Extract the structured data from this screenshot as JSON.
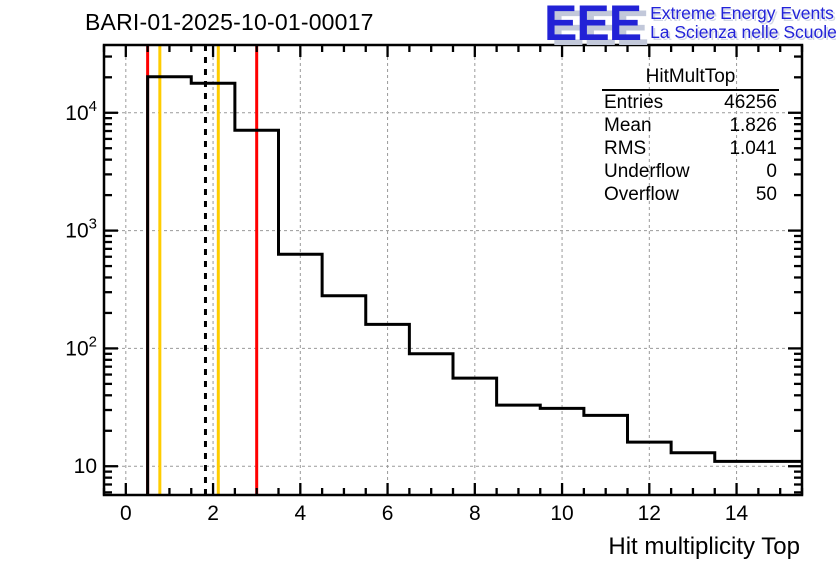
{
  "header": {
    "title": "BARI-01-2025-10-01-00017",
    "logo": {
      "acronym": "EEE",
      "line1": "Extreme Energy Events",
      "line2": "La Scienza nelle Scuole",
      "acronym_color": "#2222d6",
      "text_color": "#2323d9",
      "shadow_color": "#c2c8da"
    }
  },
  "stats": {
    "title": "HitMultTop",
    "rows": [
      {
        "label": "Entries",
        "value": "46256"
      },
      {
        "label": "Mean",
        "value": "1.826"
      },
      {
        "label": "RMS",
        "value": "1.041"
      },
      {
        "label": "Underflow",
        "value": "0"
      },
      {
        "label": "Overflow",
        "value": "50"
      }
    ]
  },
  "chart_data": {
    "type": "bar",
    "subtype": "step-outline-histogram",
    "title": "BARI-01-2025-10-01-00017",
    "xlabel": "Hit multiplicity Top",
    "ylabel": "",
    "x_scale": "linear",
    "y_scale": "log",
    "xlim": [
      -0.5,
      15.5
    ],
    "ylim": [
      5.7,
      37600
    ],
    "bin_width": 1,
    "bin_centers": [
      1,
      2,
      3,
      4,
      5,
      6,
      7,
      8,
      9,
      10,
      11,
      12,
      13,
      14,
      15
    ],
    "values": [
      20200,
      17800,
      7100,
      630,
      280,
      160,
      90,
      56,
      33,
      31,
      27,
      16,
      13,
      11,
      11
    ],
    "underflow": 0,
    "overflow": 50,
    "entries": 46256,
    "mean": 1.826,
    "rms": 1.041,
    "x_major_ticks": [
      0,
      2,
      4,
      6,
      8,
      10,
      12,
      14
    ],
    "x_minor_tick_step": 0.5,
    "y_major_ticks": [
      10,
      100,
      1000,
      10000
    ],
    "grid": "dashed-gray-at-major-ticks",
    "grid_color": "#9a9a9a",
    "line_color": "#000000",
    "marker_lines": [
      {
        "name": "alarm-line-low",
        "x": 0.5,
        "color": "#ff0000",
        "style": "solid"
      },
      {
        "name": "warn-line-low",
        "x": 0.78,
        "color": "#ffcc00",
        "style": "solid"
      },
      {
        "name": "mean-line",
        "x": 1.826,
        "color": "#000000",
        "style": "dashed"
      },
      {
        "name": "warn-line-high",
        "x": 2.12,
        "color": "#ffcc00",
        "style": "solid"
      },
      {
        "name": "alarm-line-high",
        "x": 3.0,
        "color": "#ff0000",
        "style": "solid"
      }
    ]
  }
}
